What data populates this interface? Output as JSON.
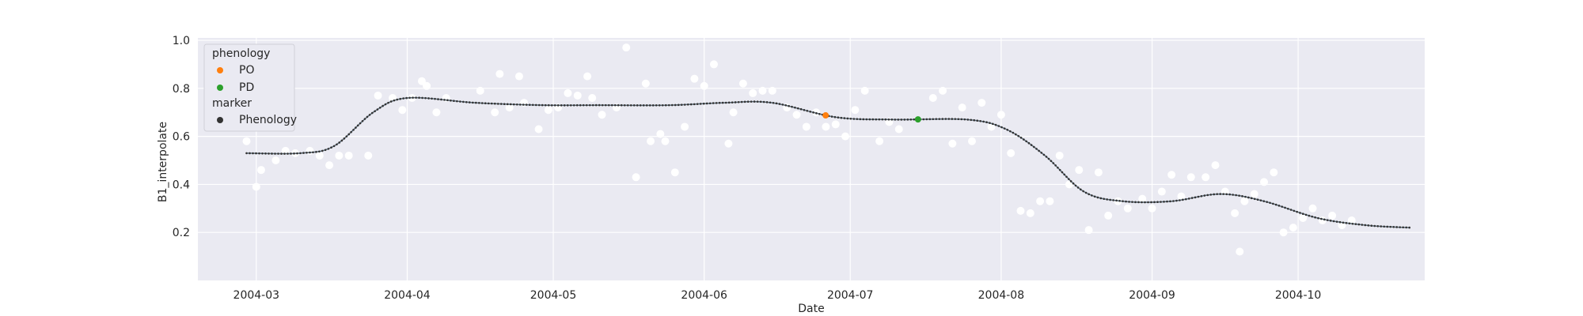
{
  "chart_data": {
    "type": "scatter",
    "title": "",
    "xlabel": "Date",
    "ylabel": "B1_interpolate",
    "xlim": [
      "2004-02-18",
      "2004-10-27"
    ],
    "ylim": [
      0.0,
      1.01
    ],
    "grid": true,
    "legend_position": "top-left",
    "x_tick_labels": [
      "2004-03",
      "2004-04",
      "2004-05",
      "2004-06",
      "2004-07",
      "2004-08",
      "2004-09",
      "2004-10"
    ],
    "y_tick_labels": [
      "0.2",
      "0.4",
      "0.6",
      "0.8",
      "1.0"
    ],
    "y_ticks": [
      0.2,
      0.4,
      0.6,
      0.8,
      1.0
    ],
    "colors": {
      "raw": "#ffffff",
      "curve": "#5f7384",
      "PO": "#ff7f0e",
      "PD": "#2ca02c",
      "phenology_marker": "#333333",
      "plot_bg": "#eaeaf2",
      "grid": "#ffffff"
    },
    "legend": {
      "phenology_title": "phenology",
      "items": [
        {
          "label": "PO",
          "color": "#ff7f0e"
        },
        {
          "label": "PD",
          "color": "#2ca02c"
        }
      ],
      "marker_title": "marker",
      "marker_items": [
        {
          "label": "Phenology",
          "color": "#333333"
        }
      ]
    },
    "series": [
      {
        "kind": "raw",
        "points": [
          [
            "2004-02-28",
            0.58
          ],
          [
            "2004-03-01",
            0.39
          ],
          [
            "2004-03-02",
            0.46
          ],
          [
            "2004-03-05",
            0.5
          ],
          [
            "2004-03-07",
            0.54
          ],
          [
            "2004-03-09",
            0.53
          ],
          [
            "2004-03-12",
            0.54
          ],
          [
            "2004-03-14",
            0.52
          ],
          [
            "2004-03-16",
            0.48
          ],
          [
            "2004-03-18",
            0.52
          ],
          [
            "2004-03-20",
            0.52
          ],
          [
            "2004-03-24",
            0.52
          ],
          [
            "2004-03-26",
            0.77
          ],
          [
            "2004-03-29",
            0.76
          ],
          [
            "2004-03-31",
            0.71
          ],
          [
            "2004-04-02",
            0.76
          ],
          [
            "2004-04-04",
            0.83
          ],
          [
            "2004-04-05",
            0.81
          ],
          [
            "2004-04-07",
            0.7
          ],
          [
            "2004-04-09",
            0.76
          ],
          [
            "2004-04-16",
            0.79
          ],
          [
            "2004-04-19",
            0.7
          ],
          [
            "2004-04-20",
            0.86
          ],
          [
            "2004-04-22",
            0.72
          ],
          [
            "2004-04-24",
            0.85
          ],
          [
            "2004-04-25",
            0.74
          ],
          [
            "2004-04-28",
            0.63
          ],
          [
            "2004-04-30",
            0.71
          ],
          [
            "2004-05-02",
            0.72
          ],
          [
            "2004-05-04",
            0.78
          ],
          [
            "2004-05-06",
            0.77
          ],
          [
            "2004-05-08",
            0.85
          ],
          [
            "2004-05-09",
            0.76
          ],
          [
            "2004-05-11",
            0.69
          ],
          [
            "2004-05-14",
            0.72
          ],
          [
            "2004-05-16",
            0.97
          ],
          [
            "2004-05-18",
            0.43
          ],
          [
            "2004-05-20",
            0.82
          ],
          [
            "2004-05-21",
            0.58
          ],
          [
            "2004-05-23",
            0.61
          ],
          [
            "2004-05-24",
            0.58
          ],
          [
            "2004-05-26",
            0.45
          ],
          [
            "2004-05-28",
            0.64
          ],
          [
            "2004-05-30",
            0.84
          ],
          [
            "2004-06-01",
            0.81
          ],
          [
            "2004-06-03",
            0.9
          ],
          [
            "2004-06-06",
            0.57
          ],
          [
            "2004-06-07",
            0.7
          ],
          [
            "2004-06-09",
            0.82
          ],
          [
            "2004-06-11",
            0.78
          ],
          [
            "2004-06-13",
            0.79
          ],
          [
            "2004-06-15",
            0.79
          ],
          [
            "2004-06-18",
            0.72
          ],
          [
            "2004-06-20",
            0.69
          ],
          [
            "2004-06-22",
            0.64
          ],
          [
            "2004-06-24",
            0.7
          ],
          [
            "2004-06-26",
            0.64
          ],
          [
            "2004-06-28",
            0.65
          ],
          [
            "2004-06-30",
            0.6
          ],
          [
            "2004-07-02",
            0.71
          ],
          [
            "2004-07-04",
            0.79
          ],
          [
            "2004-07-07",
            0.58
          ],
          [
            "2004-07-09",
            0.66
          ],
          [
            "2004-07-11",
            0.63
          ],
          [
            "2004-07-18",
            0.76
          ],
          [
            "2004-07-20",
            0.79
          ],
          [
            "2004-07-22",
            0.57
          ],
          [
            "2004-07-24",
            0.72
          ],
          [
            "2004-07-26",
            0.58
          ],
          [
            "2004-07-28",
            0.74
          ],
          [
            "2004-07-30",
            0.64
          ],
          [
            "2004-08-01",
            0.69
          ],
          [
            "2004-08-03",
            0.53
          ],
          [
            "2004-08-05",
            0.29
          ],
          [
            "2004-08-07",
            0.28
          ],
          [
            "2004-08-09",
            0.33
          ],
          [
            "2004-08-11",
            0.33
          ],
          [
            "2004-08-13",
            0.52
          ],
          [
            "2004-08-15",
            0.4
          ],
          [
            "2004-08-17",
            0.46
          ],
          [
            "2004-08-19",
            0.21
          ],
          [
            "2004-08-21",
            0.45
          ],
          [
            "2004-08-23",
            0.27
          ],
          [
            "2004-08-25",
            0.33
          ],
          [
            "2004-08-27",
            0.3
          ],
          [
            "2004-08-30",
            0.34
          ],
          [
            "2004-09-01",
            0.3
          ],
          [
            "2004-09-03",
            0.37
          ],
          [
            "2004-09-05",
            0.44
          ],
          [
            "2004-09-07",
            0.35
          ],
          [
            "2004-09-09",
            0.43
          ],
          [
            "2004-09-12",
            0.43
          ],
          [
            "2004-09-14",
            0.48
          ],
          [
            "2004-09-16",
            0.37
          ],
          [
            "2004-09-18",
            0.28
          ],
          [
            "2004-09-19",
            0.12
          ],
          [
            "2004-09-20",
            0.33
          ],
          [
            "2004-09-22",
            0.36
          ],
          [
            "2004-09-24",
            0.41
          ],
          [
            "2004-09-26",
            0.45
          ],
          [
            "2004-09-28",
            0.2
          ],
          [
            "2004-09-30",
            0.22
          ],
          [
            "2004-10-02",
            0.26
          ],
          [
            "2004-10-04",
            0.3
          ],
          [
            "2004-10-06",
            0.25
          ],
          [
            "2004-10-08",
            0.27
          ],
          [
            "2004-10-10",
            0.23
          ],
          [
            "2004-10-12",
            0.25
          ]
        ]
      },
      {
        "kind": "curve",
        "points": [
          [
            "2004-02-28",
            0.53
          ],
          [
            "2004-03-10",
            0.53
          ],
          [
            "2004-03-17",
            0.56
          ],
          [
            "2004-03-25",
            0.7
          ],
          [
            "2004-04-01",
            0.76
          ],
          [
            "2004-04-15",
            0.74
          ],
          [
            "2004-04-29",
            0.73
          ],
          [
            "2004-05-10",
            0.73
          ],
          [
            "2004-05-25",
            0.73
          ],
          [
            "2004-06-05",
            0.74
          ],
          [
            "2004-06-15",
            0.74
          ],
          [
            "2004-06-28",
            0.68
          ],
          [
            "2004-07-10",
            0.67
          ],
          [
            "2004-07-25",
            0.67
          ],
          [
            "2004-08-02",
            0.63
          ],
          [
            "2004-08-10",
            0.52
          ],
          [
            "2004-08-18",
            0.37
          ],
          [
            "2004-08-26",
            0.33
          ],
          [
            "2004-09-05",
            0.33
          ],
          [
            "2004-09-15",
            0.36
          ],
          [
            "2004-09-24",
            0.33
          ],
          [
            "2004-10-05",
            0.26
          ],
          [
            "2004-10-15",
            0.23
          ],
          [
            "2004-10-24",
            0.22
          ]
        ]
      }
    ]
  }
}
